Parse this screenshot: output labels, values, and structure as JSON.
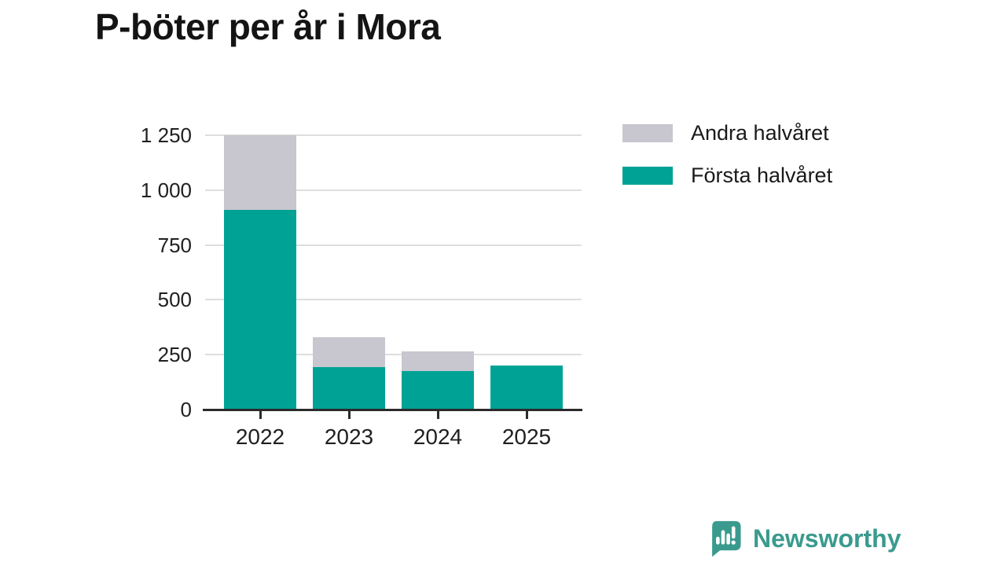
{
  "title": "P-böter per år i Mora",
  "chart_data": {
    "type": "bar",
    "stacked": true,
    "title": "P-böter per år i Mora",
    "categories": [
      "2022",
      "2023",
      "2024",
      "2025"
    ],
    "series": [
      {
        "name": "Första halvåret",
        "color": "#00a296",
        "values": [
          910,
          195,
          175,
          200
        ]
      },
      {
        "name": "Andra halvåret",
        "color": "#c8c6ce",
        "values": [
          340,
          135,
          90,
          0
        ]
      }
    ],
    "totals": [
      1250,
      330,
      265,
      200
    ],
    "xlabel": "",
    "ylabel": "",
    "ylim": [
      0,
      1250
    ],
    "yticks": [
      {
        "value": 0,
        "label": "0"
      },
      {
        "value": 250,
        "label": "250"
      },
      {
        "value": 500,
        "label": "500"
      },
      {
        "value": 750,
        "label": "750"
      },
      {
        "value": 1000,
        "label": "1 000"
      },
      {
        "value": 1250,
        "label": "1 250"
      }
    ],
    "grid": "horizontal",
    "legend_position": "top-right",
    "legend": [
      {
        "label": "Andra halvåret",
        "color": "#c8c6ce"
      },
      {
        "label": "Första halvåret",
        "color": "#00a296"
      }
    ]
  },
  "branding": {
    "logo_text": "Newsworthy",
    "logo_color": "#3a9a8e",
    "logo_icon": "newsworthy-bubble-chart-icon"
  },
  "colors": {
    "background": "#ffffff",
    "axis": "#2b2b2b",
    "gridline": "#dedede",
    "bar_teal": "#00a296",
    "bar_gray": "#c8c6ce",
    "label_text": "#202020",
    "title_text": "#141414"
  }
}
